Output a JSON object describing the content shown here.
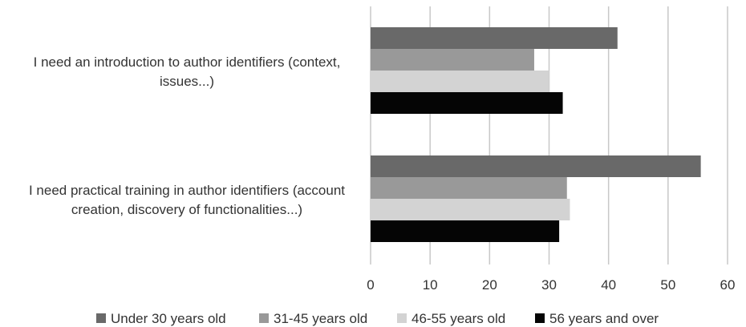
{
  "chart_data": {
    "type": "bar",
    "orientation": "horizontal",
    "title": "",
    "xlabel": "",
    "ylabel": "",
    "xlim": [
      0,
      60
    ],
    "xticks": [
      0,
      10,
      20,
      30,
      40,
      50,
      60
    ],
    "grid": "vertical",
    "legend_position": "bottom",
    "categories": [
      [
        "I need an introduction to author identifiers (context,",
        "issues...)"
      ],
      [
        "I need practical training in author identifiers (account",
        "creation, discovery of functionalities...)"
      ]
    ],
    "series": [
      {
        "name": "Under 30 years old",
        "color": "#696969",
        "values": [
          41.5,
          55.5
        ]
      },
      {
        "name": "31-45 years old",
        "color": "#999999",
        "values": [
          27.5,
          33
        ]
      },
      {
        "name": "46-55 years old",
        "color": "#d3d3d3",
        "values": [
          30,
          33.5
        ]
      },
      {
        "name": "56 years and over",
        "color": "#050505",
        "values": [
          32.3,
          31.7
        ]
      }
    ]
  }
}
